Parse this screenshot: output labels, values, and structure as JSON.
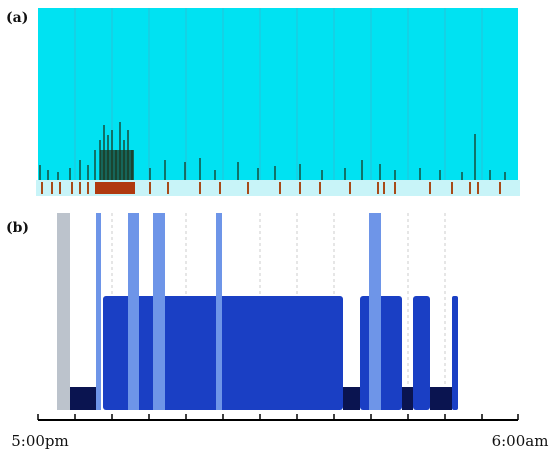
{
  "panels": [
    {
      "label": "(a)"
    },
    {
      "label": "(b)"
    }
  ],
  "x_axis": {
    "start": "5:00pm",
    "end": "6:00am"
  }
}
